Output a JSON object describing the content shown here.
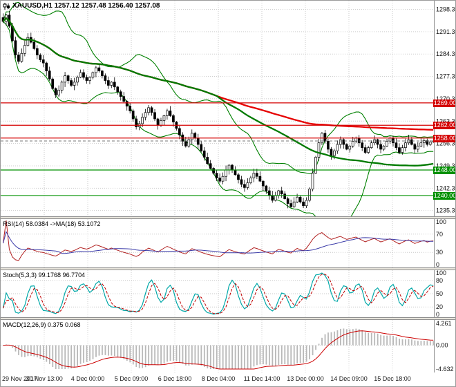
{
  "chart_data": {
    "type": "candlestick",
    "title": "XAUUSD,H1 1257.12 1257.48 1256.40 1257.08",
    "symbol": "XAUUSD",
    "timeframe": "H1",
    "ohlc_display": {
      "open": "1257.12",
      "high": "1257.48",
      "low": "1256.40",
      "close": "1257.08"
    },
    "y_axis": {
      "min": 1233.5,
      "max": 1301.0,
      "ticks": [
        "1298.30",
        "1291.30",
        "1284.30",
        "1277.30",
        "1270.30",
        "1263.30",
        "1256.30",
        "1249.30",
        "1242.30",
        "1235.30"
      ]
    },
    "x_labels": [
      "29 Nov 2017",
      "30 Nov 13:00",
      "4 Dec 00:00",
      "5 Dec 09:00",
      "6 Dec 18:00",
      "8 Dec 04:00",
      "11 Dec 14:00",
      "13 Dec 00:00",
      "14 Dec 09:00",
      "15 Dec 18:00"
    ],
    "closes": [
      1294.5,
      1296.5,
      1293.0,
      1288.5,
      1284.0,
      1282.0,
      1284.5,
      1287.0,
      1289.5,
      1288.0,
      1286.0,
      1284.0,
      1282.5,
      1281.5,
      1279.0,
      1276.5,
      1273.5,
      1271.5,
      1273.0,
      1275.5,
      1277.5,
      1276.0,
      1274.5,
      1275.5,
      1277.0,
      1278.5,
      1277.0,
      1276.0,
      1277.0,
      1278.5,
      1280.0,
      1279.0,
      1277.5,
      1276.0,
      1274.5,
      1275.5,
      1274.0,
      1272.5,
      1271.0,
      1269.5,
      1268.0,
      1266.5,
      1264.0,
      1261.5,
      1262.5,
      1264.5,
      1266.0,
      1267.5,
      1266.0,
      1264.0,
      1262.0,
      1263.5,
      1265.0,
      1266.5,
      1265.0,
      1263.0,
      1261.0,
      1259.0,
      1257.0,
      1255.5,
      1257.5,
      1259.5,
      1258.0,
      1256.0,
      1254.0,
      1252.0,
      1250.0,
      1248.5,
      1247.0,
      1245.5,
      1244.5,
      1246.0,
      1248.0,
      1249.5,
      1248.0,
      1246.5,
      1245.0,
      1243.5,
      1242.5,
      1244.0,
      1245.5,
      1247.0,
      1246.0,
      1244.5,
      1243.0,
      1241.5,
      1240.0,
      1238.5,
      1240.0,
      1241.5,
      1240.5,
      1239.0,
      1237.5,
      1236.5,
      1238.0,
      1239.5,
      1238.0,
      1236.8,
      1238.5,
      1242.0,
      1247.0,
      1252.0,
      1256.5,
      1259.5,
      1257.0,
      1254.5,
      1252.5,
      1254.0,
      1256.0,
      1257.5,
      1256.0,
      1254.5,
      1255.5,
      1257.0,
      1258.0,
      1256.5,
      1255.0,
      1253.5,
      1255.0,
      1256.5,
      1257.5,
      1256.0,
      1254.5,
      1255.5,
      1257.0,
      1258.0,
      1256.5,
      1255.0,
      1253.5,
      1255.0,
      1256.5,
      1257.5,
      1256.0,
      1254.5,
      1255.5,
      1256.5,
      1257.2,
      1256.0,
      1256.8,
      1257.1
    ],
    "bid": 1257.08,
    "levels": [
      {
        "label": "1269.00",
        "value": 1269.0,
        "color": "#d40000"
      },
      {
        "label": "1262.00",
        "value": 1262.0,
        "color": "#d40000"
      },
      {
        "label": "1258.00",
        "value": 1258.0,
        "color": "#d40000"
      },
      {
        "label": "1248.00",
        "value": 1248.0,
        "color": "#009000"
      },
      {
        "label": "1240.00",
        "value": 1240.0,
        "color": "#009000"
      }
    ],
    "overlays": {
      "bollinger": {
        "period": 20,
        "deviation": 2,
        "color": "#008000"
      },
      "ma_fast": {
        "period": 70,
        "color": "#007a00"
      },
      "ma_slow": {
        "period": 140,
        "color": "#e60000"
      }
    },
    "indicators": [
      {
        "name": "rsi",
        "label": "RSI(14) 58.0384 ->MA(18) 53.1072",
        "ticks": [
          "100",
          "70",
          "30",
          "0"
        ],
        "level_lines": [
          70,
          30
        ],
        "colors": {
          "main": "#b22222",
          "signal": "#3a3aa8"
        }
      },
      {
        "name": "stoch",
        "label": "Stoch(5,3,3) 99.1768 96.7704",
        "ticks": [
          "100",
          "80",
          "50",
          "20",
          "0"
        ],
        "level_lines": [
          80,
          50,
          20
        ],
        "colors": {
          "main": "#00a8a8",
          "signal": "#c00000"
        }
      },
      {
        "name": "macd",
        "label": "MACD(12,26,9) 0.375 0.068",
        "ticks": [
          "4.261",
          "0.00",
          "-4.632"
        ],
        "colors": {
          "hist": "#b8b8b8",
          "signal": "#cc0000"
        }
      }
    ]
  }
}
